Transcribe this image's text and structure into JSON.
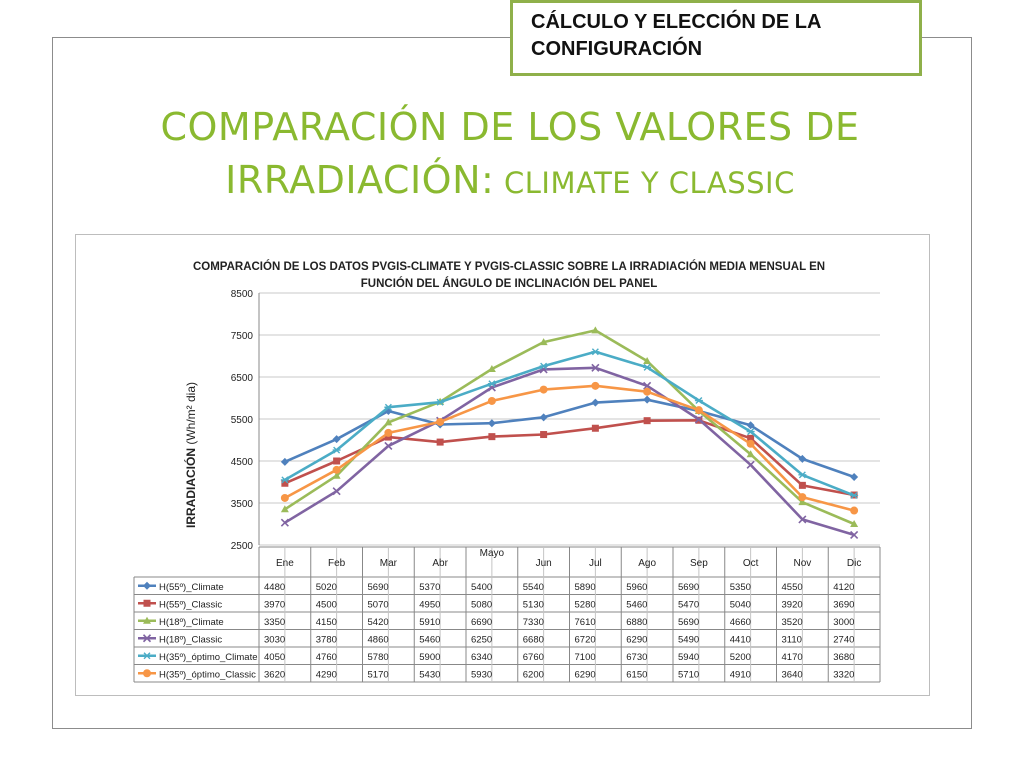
{
  "header": {
    "badge_line1": "CÁLCULO Y ELECCIÓN DE LA",
    "badge_line2": "CONFIGURACIÓN"
  },
  "slide": {
    "title_line1": "COMPARACIÓN DE LOS VALORES DE",
    "title_line2_main": "IRRADIACIÓN:",
    "title_line2_small": " CLIMATE Y CLASSIC"
  },
  "colors": {
    "title": "#8ab930",
    "badge_border": "#8fb04a"
  },
  "chart_data": {
    "type": "line",
    "title_line1": "COMPARACIÓN DE LOS DATOS PVGIS-CLIMATE Y PVGIS-CLASSIC  SOBRE LA  IRRADIACIÓN MEDIA MENSUAL EN",
    "title_line2": "FUNCIÓN DEL ÁNGULO DE INCLINACIÓN DEL PANEL",
    "ylabel_bold": "IRRADIACIÓN",
    "ylabel_rest": " (Wh/m² dia)",
    "ylim": [
      2500,
      8500
    ],
    "yticks": [
      "8500",
      "7500",
      "6500",
      "5500",
      "4500",
      "3500",
      "2500"
    ],
    "grid": true,
    "categories": [
      "Ene",
      "Feb",
      "Mar",
      "Abr",
      "Mayo",
      "Jun",
      "Jul",
      "Ago",
      "Sep",
      "Oct",
      "Nov",
      "Dic"
    ],
    "series": [
      {
        "name": "H(55º)_Climate",
        "color": "#4f81bd",
        "marker": "diamond",
        "values": [
          4480,
          5020,
          5690,
          5370,
          5400,
          5540,
          5890,
          5960,
          5690,
          5350,
          4550,
          4120
        ]
      },
      {
        "name": "H(55º)_Classic",
        "color": "#c0504d",
        "marker": "square",
        "values": [
          3970,
          4500,
          5070,
          4950,
          5080,
          5130,
          5280,
          5460,
          5470,
          5040,
          3920,
          3690
        ]
      },
      {
        "name": "H(18º)_Climate",
        "color": "#9bbb59",
        "marker": "triangle",
        "values": [
          3350,
          4150,
          5420,
          5910,
          6690,
          7330,
          7610,
          6880,
          5690,
          4660,
          3520,
          3000
        ]
      },
      {
        "name": "H(18º)_Classic",
        "color": "#8064a2",
        "marker": "x",
        "values": [
          3030,
          3780,
          4860,
          5460,
          6250,
          6680,
          6720,
          6290,
          5490,
          4410,
          3110,
          2740
        ]
      },
      {
        "name": "H(35º)_óptimo_Climate",
        "color": "#4bacc6",
        "marker": "star",
        "values": [
          4050,
          4760,
          5780,
          5900,
          6340,
          6760,
          7100,
          6730,
          5940,
          5200,
          4170,
          3680
        ]
      },
      {
        "name": "H(35º)_óptimo_Classic",
        "color": "#f79646",
        "marker": "circle",
        "values": [
          3620,
          4290,
          5170,
          5430,
          5930,
          6200,
          6290,
          6150,
          5710,
          4910,
          3640,
          3320
        ]
      }
    ]
  }
}
